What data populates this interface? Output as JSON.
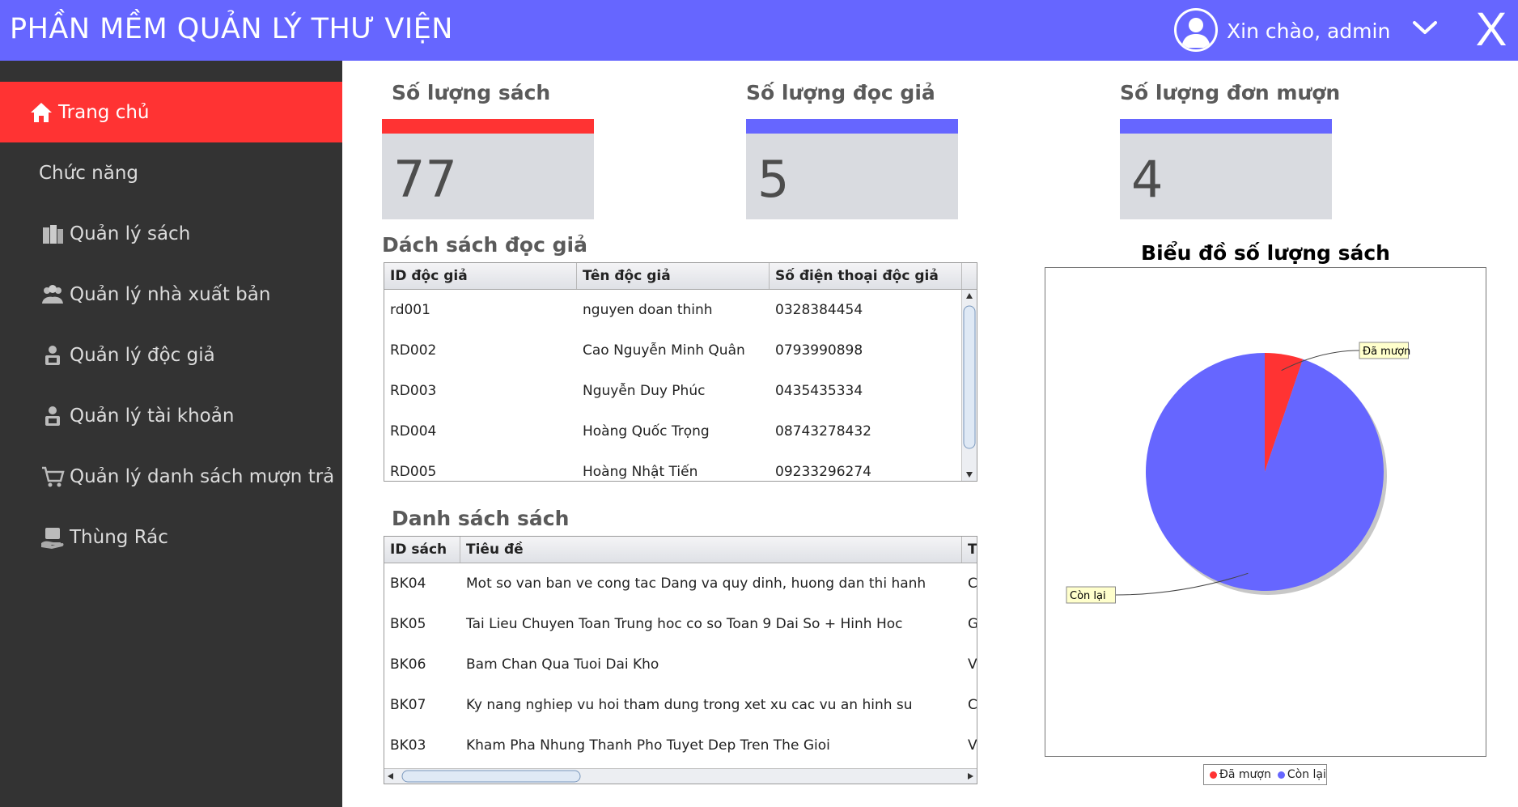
{
  "header": {
    "app_title": "PHẦN MỀM QUẢN LÝ THƯ VIỆN",
    "greeting": "Xin chào, admin",
    "close_label": "X",
    "background": "#6666ff"
  },
  "sidebar": {
    "items": [
      {
        "label": "Trang chủ",
        "icon": "home-icon",
        "active": true
      },
      {
        "label": "Chức năng",
        "icon": "",
        "active": false
      },
      {
        "label": "Quản lý sách",
        "icon": "books-icon",
        "active": false
      },
      {
        "label": "Quản lý nhà xuất bản",
        "icon": "group-icon",
        "active": false
      },
      {
        "label": "Quản lý độc giả",
        "icon": "user-icon",
        "active": false
      },
      {
        "label": "Quản lý tài khoản",
        "icon": "user-icon",
        "active": false
      },
      {
        "label": "Quản lý danh sách mượn trả",
        "icon": "cart-icon",
        "active": false
      },
      {
        "label": "Thùng Rác",
        "icon": "trash-icon",
        "active": false
      }
    ],
    "active_color": "#ff3333",
    "background": "#333333"
  },
  "stats": [
    {
      "title": "Số lượng sách",
      "value": "77",
      "bar_color": "#ff3333"
    },
    {
      "title": "Số lượng đọc giả",
      "value": "5",
      "bar_color": "#6666ff"
    },
    {
      "title": "Số lượng đơn mượn",
      "value": "4",
      "bar_color": "#6666ff"
    }
  ],
  "readers": {
    "title": "Dách sách đọc giả",
    "columns": [
      "ID độc giả",
      "Tên độc giả",
      "Số điện thoại độc giả"
    ],
    "rows": [
      [
        "rd001",
        "nguyen doan thinh",
        "0328384454"
      ],
      [
        "RD002",
        "Cao Nguyễn Minh Quân",
        "0793990898"
      ],
      [
        "RD003",
        "Nguyễn Duy Phúc",
        "0435435334"
      ],
      [
        "RD004",
        "Hoàng Quốc Trọng",
        "08743278432"
      ],
      [
        "RD005",
        "Hoàng Nhật Tiến",
        "09233296274"
      ]
    ]
  },
  "books": {
    "title": "Danh sách sách",
    "columns": [
      "ID sách",
      "Tiêu đề",
      "T"
    ],
    "rows": [
      [
        "BK04",
        "Mot so van ban ve cong tac Dang va quy dinh, huong dan thi hanh",
        "C"
      ],
      [
        "BK05",
        "Tai Lieu Chuyen Toan Trung hoc co so Toan 9 Dai So + Hinh Hoc",
        "G"
      ],
      [
        "BK06",
        "Bam Chan Qua Tuoi Dai Kho",
        "V"
      ],
      [
        "BK07",
        "Ky nang nghiep vu hoi tham dung trong xet xu cac vu an hinh su",
        "C"
      ],
      [
        "BK03",
        "Kham Pha Nhung Thanh Pho Tuyet Dep Tren The Gioi",
        "V"
      ]
    ]
  },
  "chart_data": {
    "type": "pie",
    "title": "Biểu đồ số lượng sách",
    "slices": [
      {
        "label": "Đã mượn",
        "value": 4,
        "color": "#ff3333"
      },
      {
        "label": "Còn lại",
        "value": 73,
        "color": "#6666ff"
      }
    ],
    "legend": "bottom"
  }
}
